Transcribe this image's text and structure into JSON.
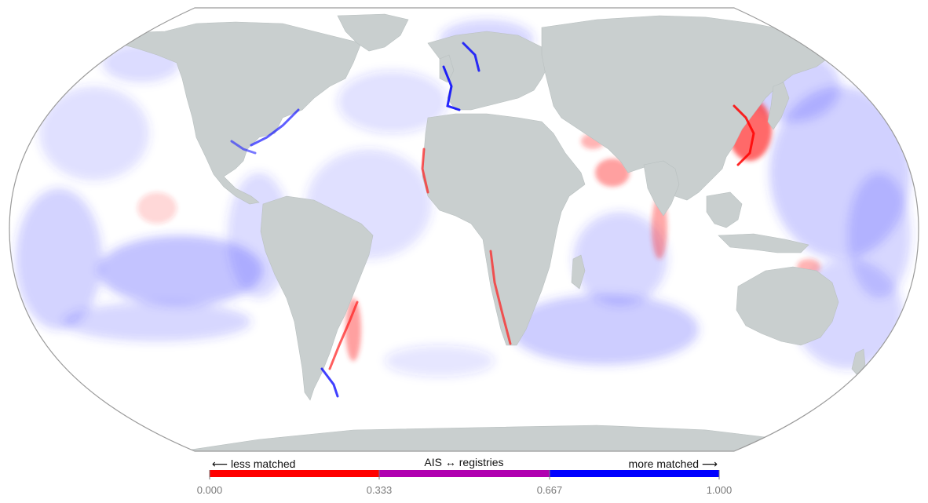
{
  "legend": {
    "left_label": "⟵  less matched",
    "center_label": "AIS ↔ registries",
    "right_label": "more matched  ⟶",
    "ticks": [
      "0.000",
      "0.333",
      "0.667",
      "1.000"
    ],
    "range": [
      0,
      1
    ],
    "segments": [
      {
        "from": 0.0,
        "to": 0.333,
        "color": "#ff0000"
      },
      {
        "from": 0.333,
        "to": 0.667,
        "color": "#b000b0"
      },
      {
        "from": 0.667,
        "to": 1.0,
        "color": "#0000ff"
      }
    ]
  },
  "colors": {
    "land": "#c9cfcf",
    "ocean": "#ffffff",
    "outline": "#9a9a9a",
    "low_match": "#ff0000",
    "mid_match": "#b000b0",
    "high_match": "#0000ff"
  }
}
